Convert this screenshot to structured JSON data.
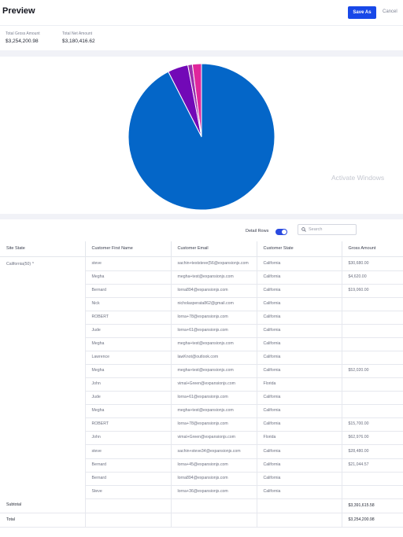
{
  "header": {
    "title": "Preview",
    "save_as_label": "Save As",
    "cancel_label": "Cancel"
  },
  "stats": [
    {
      "label": "Total Gross Amount",
      "value": "$3,254,200.98"
    },
    {
      "label": "Total Net Amount",
      "value": "$3,180,416.62"
    }
  ],
  "chart_data": {
    "type": "pie",
    "slices": [
      {
        "value": 92.5,
        "color": "#0466c8"
      },
      {
        "value": 4.5,
        "color": "#7209b7"
      },
      {
        "value": 1.0,
        "color": "#9b2fae"
      },
      {
        "value": 2.0,
        "color": "#e0269c"
      }
    ]
  },
  "watermark": "Activate Windows",
  "controls": {
    "detail_rows_label": "Detail Rows",
    "detail_rows_on": true,
    "search_placeholder": "Search"
  },
  "table": {
    "columns": [
      "Site State",
      "Customer First Name",
      "Customer Email",
      "Customer State",
      "Gross Amount"
    ],
    "group_label": "California(50) ^",
    "rows": [
      [
        "steve",
        "sachin+teststeve{56@expansionjs.com",
        "California",
        "$30,680.00"
      ],
      [
        "Megha",
        "megha+test@expansionjs.com",
        "California",
        "$4,620.00"
      ],
      [
        "Bernard",
        "lorna894@expansionjs.com",
        "California",
        "$19,060.00"
      ],
      [
        "Nick",
        "nicholasperata862@gmail.com",
        "California",
        ""
      ],
      [
        "ROBERT",
        "lorna+78@expansionjs.com",
        "California",
        ""
      ],
      [
        "Jude",
        "lorna+61@expansionjs.com",
        "California",
        ""
      ],
      [
        "Megha",
        "megha+test@expansionjs.com",
        "California",
        ""
      ],
      [
        "Lawrence",
        "lawKnot@outlook.com",
        "California",
        ""
      ],
      [
        "Megha",
        "megha+test@expansionjs.com",
        "California",
        "$52,020.00"
      ],
      [
        "John",
        "vimal+Green@expansionjs.com",
        "Florida",
        ""
      ],
      [
        "Jude",
        "lorna+61@expansionjs.com",
        "California",
        ""
      ],
      [
        "Megha",
        "megha+test@expansionjs.com",
        "California",
        ""
      ],
      [
        "ROBERT",
        "lorna+78@expansionjs.com",
        "California",
        "$15,700.00"
      ],
      [
        "John",
        "vimal+Green@expansionjs.com",
        "Florida",
        "$62,976.00"
      ],
      [
        "steve",
        "sachin+steve34@expansionjs.com",
        "California",
        "$28,480.00"
      ],
      [
        "Bernard",
        "lorna+45@expansionjs.com",
        "California",
        "$21,044.57"
      ],
      [
        "Bernard",
        "lorna894@expansionjs.com",
        "California",
        ""
      ],
      [
        "Steve",
        "lorna+36@expansionjs.com",
        "California",
        ""
      ]
    ],
    "subtotal_label": "Subtotal",
    "subtotal_value": "$3,391,615.58",
    "total_label": "Total",
    "total_value": "$3,254,200.98"
  }
}
